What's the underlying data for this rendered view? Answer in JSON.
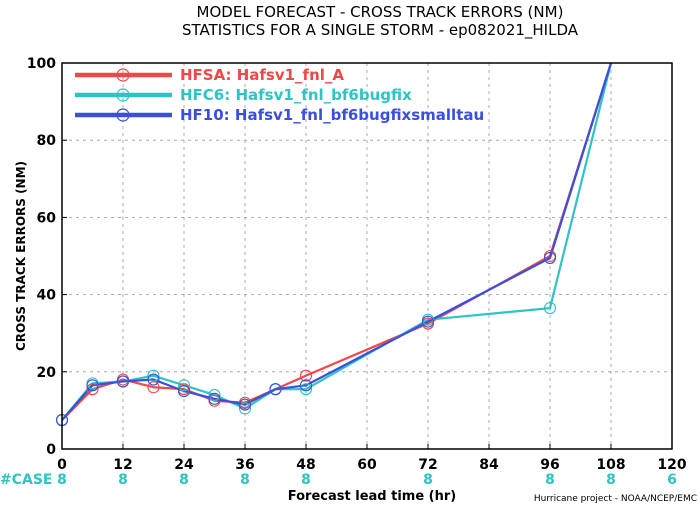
{
  "chart_data": {
    "type": "line",
    "title": "MODEL FORECAST - CROSS TRACK ERRORS (NM)",
    "subtitle": "STATISTICS FOR A SINGLE STORM - ep082021_HILDA",
    "xlabel": "Forecast lead time (hr)",
    "ylabel": "CROSS TRACK ERRORS (NM)",
    "xlim": [
      0,
      120
    ],
    "ylim": [
      0,
      100
    ],
    "xticks": [
      0,
      12,
      24,
      36,
      48,
      60,
      72,
      84,
      96,
      108,
      120
    ],
    "yticks": [
      0,
      20,
      40,
      60,
      80,
      100
    ],
    "grid": true,
    "legend_position": "top-left",
    "series": [
      {
        "name": "HFSA: Hafsv1_fnl_A",
        "color": "#f04848",
        "x": [
          0,
          6,
          12,
          18,
          24,
          30,
          36,
          42,
          48,
          72,
          96,
          108
        ],
        "y": [
          7.5,
          15.5,
          18,
          16,
          15.5,
          12.5,
          12,
          15.5,
          19,
          32.5,
          50,
          100
        ]
      },
      {
        "name": "HFC6: Hafsv1_fnl_bf6bugfix",
        "color": "#2ec4c4",
        "x": [
          0,
          6,
          12,
          18,
          24,
          30,
          36,
          42,
          48,
          72,
          96,
          108
        ],
        "y": [
          7.5,
          17,
          17.5,
          19,
          16.5,
          14,
          10.5,
          15.5,
          15.5,
          33.5,
          36.5,
          100
        ]
      },
      {
        "name": "HF10: Hafsv1_fnl_bf6bugfixsmalltau",
        "color": "#3a4ee0",
        "x": [
          0,
          6,
          12,
          18,
          24,
          30,
          36,
          42,
          48,
          72,
          96,
          108
        ],
        "y": [
          7.5,
          16.5,
          17.5,
          18,
          15,
          13,
          11.5,
          15.5,
          16.5,
          33,
          49.5,
          100
        ]
      }
    ],
    "case_label": "#CASE",
    "case_counts": [
      {
        "x": 0,
        "count": "8"
      },
      {
        "x": 12,
        "count": "8"
      },
      {
        "x": 24,
        "count": "8"
      },
      {
        "x": 36,
        "count": "8"
      },
      {
        "x": 48,
        "count": "8"
      },
      {
        "x": 72,
        "count": "8"
      },
      {
        "x": 96,
        "count": "8"
      },
      {
        "x": 108,
        "count": "8"
      },
      {
        "x": 120,
        "count": "6"
      }
    ],
    "credit": "Hurricane project - NOAA/NCEP/EMC"
  }
}
